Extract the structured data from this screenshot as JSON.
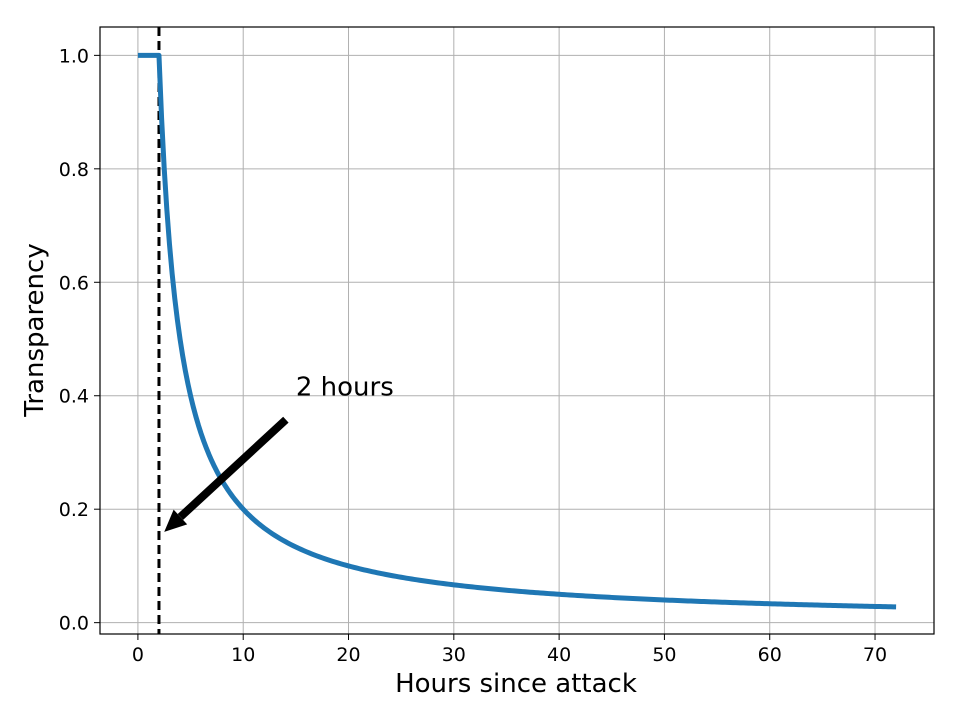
{
  "chart_data": {
    "type": "line",
    "title": "",
    "xlabel": "Hours since attack",
    "ylabel": "Transparency",
    "xlim": [
      -3.6,
      75.6
    ],
    "ylim": [
      -0.02,
      1.05
    ],
    "xticks": [
      0,
      10,
      20,
      30,
      40,
      50,
      60,
      70
    ],
    "yticks": [
      "0.0",
      "0.2",
      "0.4",
      "0.6",
      "0.8",
      "1.0"
    ],
    "grid": true,
    "legend": "none",
    "series": [
      {
        "color": "#1f77b4",
        "x": [
          0,
          1,
          2,
          3,
          4,
          5,
          6,
          8,
          10,
          12,
          15,
          20,
          25,
          30,
          40,
          50,
          60,
          72
        ],
        "y": [
          1.0,
          1.0,
          1.0,
          0.667,
          0.5,
          0.4,
          0.333,
          0.25,
          0.2,
          0.167,
          0.133,
          0.1,
          0.08,
          0.067,
          0.05,
          0.04,
          0.033,
          0.028
        ]
      }
    ],
    "vline": {
      "x": 2,
      "style": "dashed",
      "color": "#000000"
    },
    "annotations": [
      {
        "text": "2 hours",
        "text_x": 15,
        "text_y": 0.4,
        "arrow_to_x": 2.5,
        "arrow_to_y": 0.16
      }
    ]
  }
}
